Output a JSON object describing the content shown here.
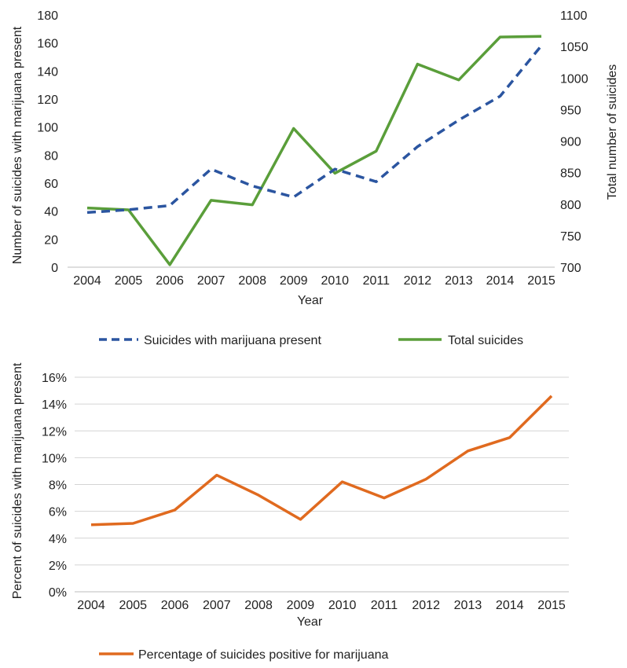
{
  "chart_data": [
    {
      "type": "line",
      "categories": [
        "2004",
        "2005",
        "2006",
        "2007",
        "2008",
        "2009",
        "2010",
        "2011",
        "2012",
        "2013",
        "2014",
        "2015"
      ],
      "xlabel": "Year",
      "ylabel": "Number of suicides with marijuana present",
      "ylabel_right": "Total number of suicides",
      "ylim": [
        0,
        180
      ],
      "y_ticks": [
        0,
        20,
        40,
        60,
        80,
        100,
        120,
        140,
        160,
        180
      ],
      "ylim_right": [
        700,
        1100
      ],
      "y_right_ticks": [
        700,
        750,
        800,
        850,
        900,
        950,
        1000,
        1050,
        1100
      ],
      "grid": false,
      "legend_position": "bottom",
      "series": [
        {
          "name": "Suicides with marijuana present",
          "axis": "left",
          "style": "dashed",
          "color": "#2b55a0",
          "values": [
            39,
            41,
            44,
            70,
            58,
            50,
            70,
            61,
            86,
            105,
            122,
            158
          ]
        },
        {
          "name": "Total suicides",
          "axis": "right",
          "style": "solid",
          "color": "#5a9e3a",
          "values": [
            794,
            791,
            704,
            806,
            799,
            920,
            849,
            884,
            1022,
            997,
            1065,
            1066
          ]
        }
      ]
    },
    {
      "type": "line",
      "categories": [
        "2004",
        "2005",
        "2006",
        "2007",
        "2008",
        "2009",
        "2010",
        "2011",
        "2012",
        "2013",
        "2014",
        "2015"
      ],
      "xlabel": "Year",
      "ylabel": "Percent of suicides with marijuana present",
      "ylim": [
        0,
        16
      ],
      "y_ticks": [
        "0%",
        "2%",
        "4%",
        "6%",
        "8%",
        "10%",
        "12%",
        "14%",
        "16%"
      ],
      "grid": true,
      "legend_position": "bottom",
      "series": [
        {
          "name": "Percentage of suicides positive for marijuana",
          "style": "solid",
          "color": "#e06a1f",
          "values": [
            5.0,
            5.1,
            6.1,
            8.7,
            7.2,
            5.4,
            8.2,
            7.0,
            8.4,
            10.5,
            11.5,
            14.6
          ]
        }
      ]
    }
  ]
}
